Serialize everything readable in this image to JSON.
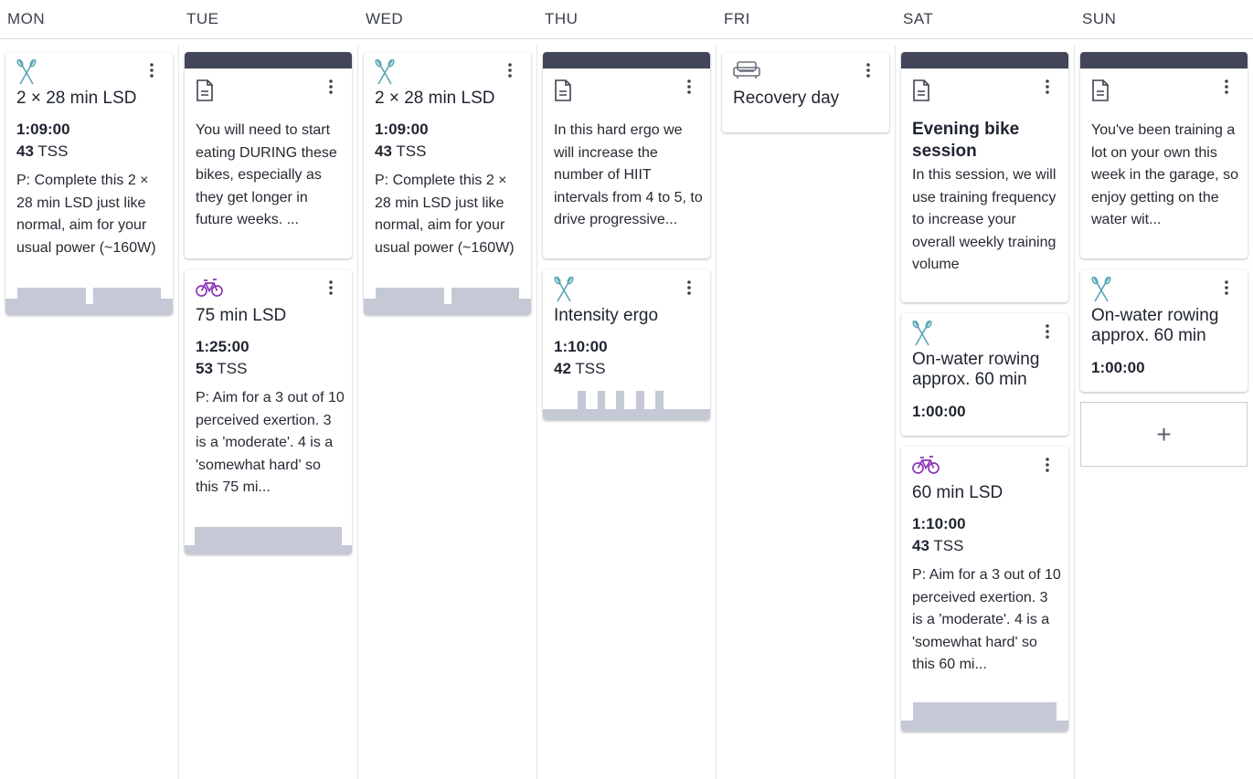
{
  "days": [
    "MON",
    "TUE",
    "WED",
    "THU",
    "FRI",
    "SAT",
    "SUN"
  ],
  "colors": {
    "note_bar": "#434659",
    "rowing_icon": "#5aa6b5",
    "bike_icon": "#8a36b8",
    "profile_fill": "#c5c9d6"
  },
  "cards": {
    "mon_row": {
      "icon": "rowing-oars-icon",
      "title": "2 × 28 min LSD",
      "duration": "1:09:00",
      "tss_value": "43",
      "tss_unit": "TSS",
      "description": "P: Complete this 2 × 28 min LSD just like normal, aim for your usual power (~160W)"
    },
    "tue_note": {
      "icon": "document-icon",
      "description": "You will need to start eating DURING these bikes, especially as they get longer in future weeks. ..."
    },
    "tue_bike": {
      "icon": "bike-icon",
      "title": "75 min LSD",
      "duration": "1:25:00",
      "tss_value": "53",
      "tss_unit": "TSS",
      "description": "P: Aim for a 3 out of 10 perceived exertion. 3 is a 'moderate'. 4 is a 'somewhat hard' so this 75 mi..."
    },
    "wed_row": {
      "icon": "rowing-oars-icon",
      "title": "2 × 28 min LSD",
      "duration": "1:09:00",
      "tss_value": "43",
      "tss_unit": "TSS",
      "description": "P: Complete this 2 × 28 min LSD just like normal, aim for your usual power (~160W)"
    },
    "thu_note": {
      "icon": "document-icon",
      "description": "In this hard ergo we will increase the number of HIIT intervals from 4 to 5, to drive progressive..."
    },
    "thu_row": {
      "icon": "rowing-oars-icon",
      "title": "Intensity ergo",
      "duration": "1:10:00",
      "tss_value": "42",
      "tss_unit": "TSS"
    },
    "fri_rest": {
      "icon": "sofa-icon",
      "title": "Recovery day"
    },
    "sat_note": {
      "icon": "document-icon",
      "title": "Evening bike session",
      "description": "In this session, we will use training frequency to increase your overall weekly training volume"
    },
    "sat_row": {
      "icon": "rowing-oars-icon",
      "title": "On-water rowing approx. 60 min",
      "duration": "1:00:00"
    },
    "sat_bike": {
      "icon": "bike-icon",
      "title": "60 min LSD",
      "duration": "1:10:00",
      "tss_value": "43",
      "tss_unit": "TSS",
      "description": "P: Aim for a 3 out of 10 perceived exertion. 3 is a 'moderate'. 4 is a 'somewhat hard' so this 60 mi..."
    },
    "sun_note": {
      "icon": "document-icon",
      "description": "You've been training a lot on your own this week in the garage, so enjoy getting on the water wit..."
    },
    "sun_row": {
      "icon": "rowing-oars-icon",
      "title": "On-water rowing approx. 60 min",
      "duration": "1:00:00"
    }
  },
  "add_button": {
    "label": "+"
  }
}
